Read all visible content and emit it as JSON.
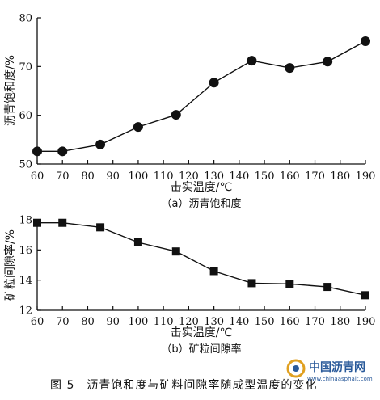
{
  "chart_data": [
    {
      "type": "line",
      "subtitle": "（a）沥青饱和度",
      "xlabel": "击实温度/℃",
      "ylabel": "沥青饱和度/%",
      "x": [
        60,
        70,
        85,
        100,
        115,
        130,
        145,
        160,
        175,
        190
      ],
      "y": [
        52.6,
        52.6,
        54.0,
        57.6,
        60.1,
        66.7,
        71.2,
        69.7,
        71.0,
        75.2
      ],
      "xlim": [
        60,
        190
      ],
      "ylim": [
        50,
        80
      ],
      "xticks": [
        60,
        70,
        80,
        90,
        100,
        110,
        120,
        130,
        140,
        150,
        160,
        170,
        180,
        190
      ],
      "yticks": [
        50,
        60,
        70,
        80
      ],
      "marker": "circle",
      "grid": false
    },
    {
      "type": "line",
      "subtitle": "（b）矿粒间隙率",
      "xlabel": "击实温度/℃",
      "ylabel": "矿粒间隙率/%",
      "x": [
        60,
        70,
        85,
        100,
        115,
        130,
        145,
        160,
        175,
        190
      ],
      "y": [
        17.8,
        17.8,
        17.5,
        16.5,
        15.9,
        14.6,
        13.8,
        13.75,
        13.55,
        13.0
      ],
      "xlim": [
        60,
        190
      ],
      "ylim": [
        12,
        18
      ],
      "xticks": [
        60,
        70,
        80,
        90,
        100,
        110,
        120,
        130,
        140,
        150,
        160,
        170,
        180,
        190
      ],
      "yticks": [
        12,
        14,
        16,
        18
      ],
      "marker": "square",
      "grid": false
    }
  ],
  "caption": "图 5　沥青饱和度与矿料间隙率随成型温度的变化",
  "watermark": {
    "title": "中国沥青网",
    "url": "www.chinaasphalt.com",
    "color": "#2a5a9a",
    "accent": "#e0a020"
  }
}
